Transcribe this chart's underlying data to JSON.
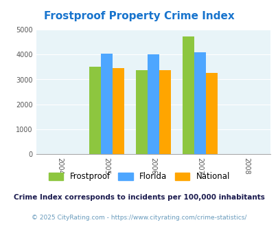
{
  "title": "Frostproof Property Crime Index",
  "title_color": "#1874CD",
  "years": [
    2004,
    2005,
    2006,
    2007,
    2008
  ],
  "bar_years": [
    2005,
    2006,
    2007
  ],
  "frostproof": [
    3520,
    3380,
    4730
  ],
  "florida": [
    4020,
    4000,
    4100
  ],
  "national": [
    3450,
    3360,
    3250
  ],
  "color_frostproof": "#8DC63F",
  "color_florida": "#4DA6FF",
  "color_national": "#FFA500",
  "ylim": [
    0,
    5000
  ],
  "yticks": [
    0,
    1000,
    2000,
    3000,
    4000,
    5000
  ],
  "bar_width": 0.25,
  "bg_color": "#E8F4F8",
  "legend_labels": [
    "Frostproof",
    "Florida",
    "National"
  ],
  "footnote1": "Crime Index corresponds to incidents per 100,000 inhabitants",
  "footnote2": "© 2025 CityRating.com - https://www.cityrating.com/crime-statistics/",
  "footnote1_color": "#1a1a4e",
  "footnote2_color": "#6699bb"
}
